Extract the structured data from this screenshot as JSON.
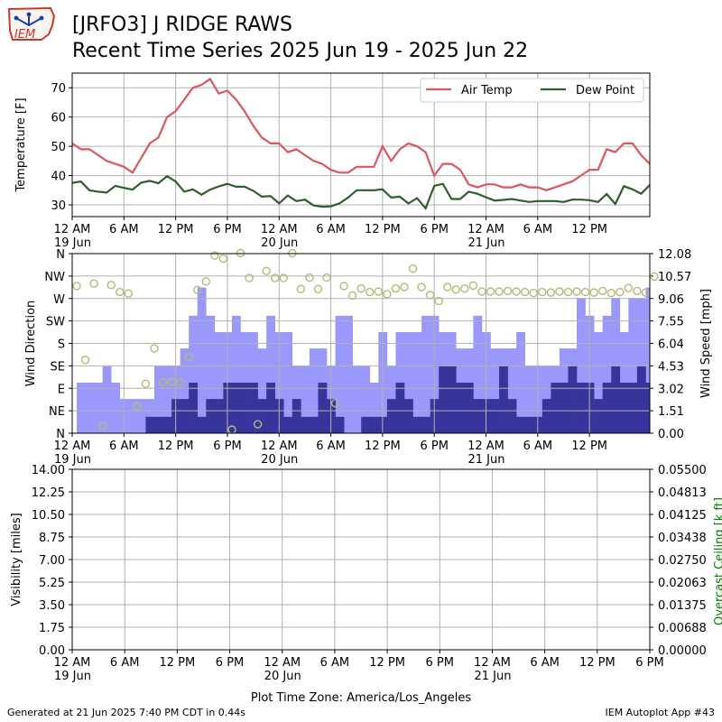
{
  "header": {
    "title_line1": "[JRFO3] J RIDGE RAWS",
    "title_line2": "Recent Time Series 2025 Jun 19 - 2025 Jun 22",
    "logo_text": "IEM"
  },
  "footer": {
    "generated": "Generated at 21 Jun 2025 7:40 PM CDT in 0.44s",
    "app": "IEM Autoplot App #43"
  },
  "colors": {
    "air_temp": "#d9575f",
    "dew_point": "#2e5e2a",
    "gust_bar": "#9a98fa",
    "wind_bar": "#36359b",
    "direction_marker": "#b4b97a",
    "ceiling_label": "#008000",
    "grid": "#b0b0b0"
  },
  "chart_data": [
    {
      "type": "line",
      "ylabel": "Temperature [F]",
      "ylim": [
        26,
        75
      ],
      "yticks": [
        30,
        40,
        50,
        60,
        70
      ],
      "xlim": [
        0,
        67
      ],
      "x_unit": "hours since 19 Jun 12 AM",
      "x_tick_positions": [
        0,
        6,
        12,
        18,
        24,
        30,
        36,
        42,
        48,
        54,
        60
      ],
      "x_tick_labels": [
        "12 AM\n19 Jun",
        "6 AM",
        "12 PM",
        "6 PM",
        "12 AM\n20 Jun",
        "6 AM",
        "12 PM",
        "6 PM",
        "12 AM\n21 Jun",
        "6 AM",
        "12 PM"
      ],
      "grid": true,
      "legend": "top-right",
      "series": [
        {
          "name": "Air Temp",
          "x": [
            0,
            1,
            2,
            3,
            4,
            5,
            6,
            7,
            8,
            9,
            10,
            11,
            12,
            13,
            14,
            15,
            16,
            17,
            18,
            19,
            20,
            21,
            22,
            23,
            24,
            25,
            26,
            27,
            28,
            29,
            30,
            31,
            32,
            33,
            34,
            35,
            36,
            37,
            38,
            39,
            40,
            41,
            42,
            43,
            44,
            45,
            46,
            47,
            48,
            49,
            50,
            51,
            52,
            53,
            54,
            55,
            56,
            57,
            58,
            59,
            60,
            61,
            62,
            63,
            64,
            65,
            66,
            67
          ],
          "values": [
            51,
            49,
            49,
            47,
            45,
            44,
            43,
            41,
            46,
            51,
            53,
            60,
            62,
            66,
            70,
            71,
            73,
            68,
            69,
            66,
            62,
            57,
            53,
            51,
            51,
            48,
            49,
            47,
            45,
            44,
            42,
            41,
            41,
            43,
            43,
            43,
            50,
            45,
            49,
            51,
            50,
            48,
            40,
            44,
            44,
            42,
            37,
            36,
            37,
            37,
            36,
            36,
            37,
            36,
            36,
            35,
            36,
            37,
            38,
            40,
            42,
            42,
            49,
            48,
            51,
            51,
            47,
            44
          ]
        },
        {
          "name": "Dew Point",
          "x": [
            0,
            1,
            2,
            3,
            4,
            5,
            6,
            7,
            8,
            9,
            10,
            11,
            12,
            13,
            14,
            15,
            16,
            17,
            18,
            19,
            20,
            21,
            22,
            23,
            24,
            25,
            26,
            27,
            28,
            29,
            30,
            31,
            32,
            33,
            34,
            35,
            36,
            37,
            38,
            39,
            40,
            41,
            42,
            43,
            44,
            45,
            46,
            47,
            48,
            49,
            50,
            51,
            52,
            53,
            54,
            55,
            56,
            57,
            58,
            59,
            60,
            61,
            62,
            63,
            64,
            65,
            66,
            67
          ],
          "values": [
            37.5,
            38,
            35,
            34.5,
            34.2,
            36.5,
            35.8,
            35.2,
            37.6,
            38.2,
            37.4,
            39.8,
            38,
            34.5,
            35.3,
            33.5,
            35.2,
            36.3,
            37.2,
            36.2,
            36.2,
            34.8,
            32.8,
            33,
            30.5,
            33.2,
            31.3,
            31.8,
            29.8,
            29.4,
            29.5,
            30.5,
            32.5,
            35,
            35,
            35,
            35.3,
            32.5,
            32.8,
            30.5,
            32.3,
            28.8,
            36.5,
            37.2,
            32,
            32,
            34.5,
            33.8,
            32.6,
            31.5,
            31.7,
            32,
            31.5,
            31,
            31.3,
            31.3,
            31.3,
            31,
            31.8,
            31.8,
            31.6,
            31,
            33.7,
            30.3,
            36.4,
            35.3,
            33.8,
            36.8
          ]
        }
      ]
    },
    {
      "type": "bar",
      "ylabel": "Wind Direction",
      "ylabel_right": "Wind Speed [mph]",
      "direction_ticks": [
        "N",
        "NE",
        "E",
        "SE",
        "S",
        "SW",
        "W",
        "NW",
        "N"
      ],
      "direction_range": [
        0,
        360
      ],
      "speed_ticks": [
        "0.00",
        "1.51",
        "3.02",
        "4.53",
        "6.04",
        "7.55",
        "9.06",
        "10.57",
        "12.08"
      ],
      "speed_range": [
        0,
        12.08
      ],
      "xlim": [
        0,
        67
      ],
      "x_unit": "hours since 19 Jun 12 AM",
      "x_tick_positions": [
        0,
        6,
        12,
        18,
        24,
        30,
        36,
        42,
        48,
        54,
        60
      ],
      "x_tick_labels": [
        "12 AM\n19 Jun",
        "6 AM",
        "12 PM",
        "6 PM",
        "12 AM\n20 Jun",
        "6 AM",
        "12 PM",
        "6 PM",
        "12 AM\n21 Jun",
        "6 AM",
        "12 PM"
      ],
      "grid": true,
      "series": [
        {
          "name": "Gust",
          "values": [
            3.4,
            3.4,
            3.4,
            4.5,
            3.4,
            2.3,
            2.3,
            2.3,
            2.3,
            4.5,
            4.5,
            4.5,
            5.7,
            7.9,
            9.8,
            7.9,
            6.8,
            6.8,
            7.9,
            6.8,
            6.8,
            5.7,
            7.9,
            6.8,
            6.8,
            4.5,
            4.5,
            5.7,
            5.7,
            4.5,
            7.9,
            7.9,
            4.5,
            4.5,
            3.4,
            6.8,
            4.5,
            6.8,
            6.8,
            6.8,
            7.9,
            7.9,
            6.8,
            6.8,
            5.7,
            5.7,
            7.9,
            6.8,
            5.7,
            5.7,
            5.7,
            6.8,
            4.5,
            4.5,
            4.5,
            4.5,
            5.7,
            5.7,
            9.1,
            7.9,
            6.8,
            7.9,
            9.1,
            6.8,
            9.1,
            9.1,
            9.8,
            9.1
          ],
          "fill_to": 0
        },
        {
          "name": "Wind",
          "values": [
            0,
            0,
            0,
            0,
            0,
            0,
            0,
            0,
            1.1,
            1.1,
            1.1,
            2.3,
            2.3,
            3.4,
            1.1,
            2.3,
            2.3,
            3.4,
            3.4,
            3.4,
            3.4,
            2.3,
            3.4,
            2.3,
            1.1,
            2.3,
            1.1,
            1.1,
            3.4,
            2.3,
            1.1,
            0,
            0,
            1.1,
            1.1,
            1.1,
            2.3,
            3.4,
            2.3,
            1.1,
            1.1,
            2.3,
            4.5,
            4.5,
            3.4,
            3.4,
            2.3,
            2.3,
            2.3,
            4.5,
            2.3,
            1.1,
            1.1,
            1.1,
            2.3,
            3.4,
            3.4,
            4.5,
            3.4,
            3.4,
            2.3,
            3.4,
            4.5,
            3.4,
            3.4,
            4.5,
            3.4,
            3.4
          ],
          "fill_to": 0
        },
        {
          "name": "Wind Direction",
          "type": "scatter",
          "x": [
            0,
            1,
            2,
            3,
            4,
            5,
            6,
            7,
            8,
            9,
            10,
            11,
            12,
            13,
            14,
            15,
            16,
            17,
            18,
            19,
            20,
            21,
            22,
            23,
            24,
            25,
            26,
            27,
            28,
            29,
            30,
            31,
            32,
            33,
            34,
            35,
            36,
            37,
            38,
            39,
            40,
            41,
            42,
            43,
            44,
            45,
            46,
            47,
            48,
            49,
            50,
            51,
            52,
            53,
            54,
            55,
            56,
            57,
            58,
            59,
            60,
            61,
            62,
            63,
            64,
            65,
            66,
            67
          ],
          "values": [
            295,
            147,
            300,
            15,
            297,
            283,
            280,
            54,
            99,
            170,
            102,
            103,
            102,
            153,
            287,
            304,
            356,
            350,
            7,
            361,
            311,
            18,
            325,
            311,
            311,
            361,
            289,
            312,
            289,
            312,
            60,
            295,
            276,
            290,
            283,
            284,
            279,
            290,
            293,
            330,
            293,
            277,
            265,
            293,
            288,
            290,
            296,
            284,
            284,
            284,
            285,
            284,
            283,
            281,
            283,
            282,
            284,
            283,
            284,
            283,
            282,
            285,
            281,
            283,
            291,
            285,
            282,
            314
          ]
        }
      ]
    },
    {
      "type": "line",
      "ylabel": "Visibility [miles]",
      "ylabel_right": "Overcast Ceiling [k ft]",
      "ylim": [
        0,
        14
      ],
      "yticks": [
        "0.00",
        "1.75",
        "3.50",
        "5.25",
        "7.00",
        "8.75",
        "10.50",
        "12.25",
        "14.00"
      ],
      "ylim_right": [
        0,
        0.055
      ],
      "yticks_right": [
        "0.00000",
        "0.00688",
        "0.01375",
        "0.02063",
        "0.02750",
        "0.03438",
        "0.04125",
        "0.04813",
        "0.05500"
      ],
      "xlim": [
        0,
        66
      ],
      "x_unit": "hours since 19 Jun 12 AM",
      "x_tick_positions": [
        0,
        6,
        12,
        18,
        24,
        30,
        36,
        42,
        48,
        54,
        60,
        66
      ],
      "x_tick_labels": [
        "12 AM\n19 Jun",
        "6 AM",
        "12 PM",
        "6 PM",
        "12 AM\n20 Jun",
        "6 AM",
        "12 PM",
        "6 PM",
        "12 AM\n21 Jun",
        "6 AM",
        "12 PM",
        "6 PM"
      ],
      "xlabel": "Plot Time Zone: America/Los_Angeles",
      "grid": true,
      "series": []
    }
  ]
}
